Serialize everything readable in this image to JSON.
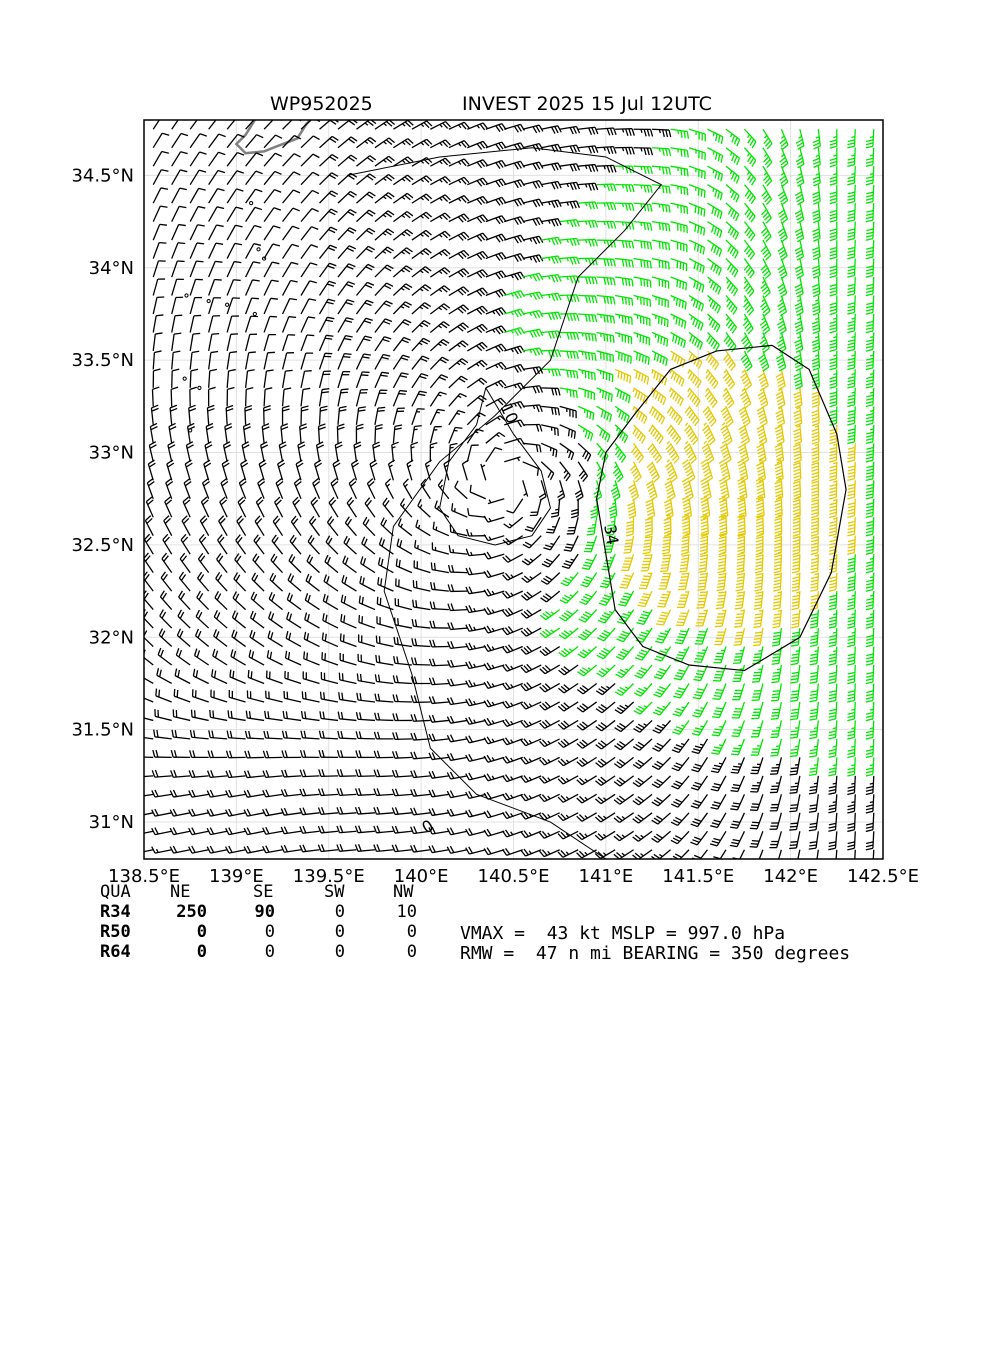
{
  "title": {
    "storm_id": "WP952025",
    "desc": "INVEST 2025 15 Jul 12UTC"
  },
  "map": {
    "lon_range": [
      138.5,
      142.5
    ],
    "lat_range": [
      30.8,
      34.8
    ],
    "lon_ticks": [
      "138.5°E",
      "139°E",
      "139.5°E",
      "140°E",
      "140.5°E",
      "141°E",
      "141.5°E",
      "142°E",
      "142.5°E"
    ],
    "lat_ticks": [
      "34.5°N",
      "34°N",
      "33.5°N",
      "33°N",
      "32.5°N",
      "32°N",
      "31.5°N",
      "31°N"
    ],
    "center": {
      "lon": 140.45,
      "lat": 32.85
    },
    "contours": [
      {
        "label": "10",
        "level_kt": 10
      },
      {
        "label": "34",
        "level_kt": 34
      },
      {
        "label": "0",
        "level_kt": 0
      }
    ],
    "colors": {
      "below34": "#000000",
      "gale": "#00e600",
      "storm": "#e6c800",
      "coast": "#808080",
      "grid": "#e0e0e0"
    },
    "barb_color_thresholds_kt": [
      34,
      50
    ]
  },
  "radii_table": {
    "header": [
      "QUA",
      "NE",
      "SE",
      "SW",
      "NW"
    ],
    "rows": [
      {
        "label": "R34",
        "values": [
          "250",
          "90",
          "0",
          "10"
        ]
      },
      {
        "label": "R50",
        "values": [
          "0",
          "0",
          "0",
          "0"
        ]
      },
      {
        "label": "R64",
        "values": [
          "0",
          "0",
          "0",
          "0"
        ]
      }
    ]
  },
  "info": {
    "line1": "VMAX =  43 kt MSLP = 997.0 hPa",
    "line2": "RMW =  47 n mi BEARING = 350 degrees"
  }
}
